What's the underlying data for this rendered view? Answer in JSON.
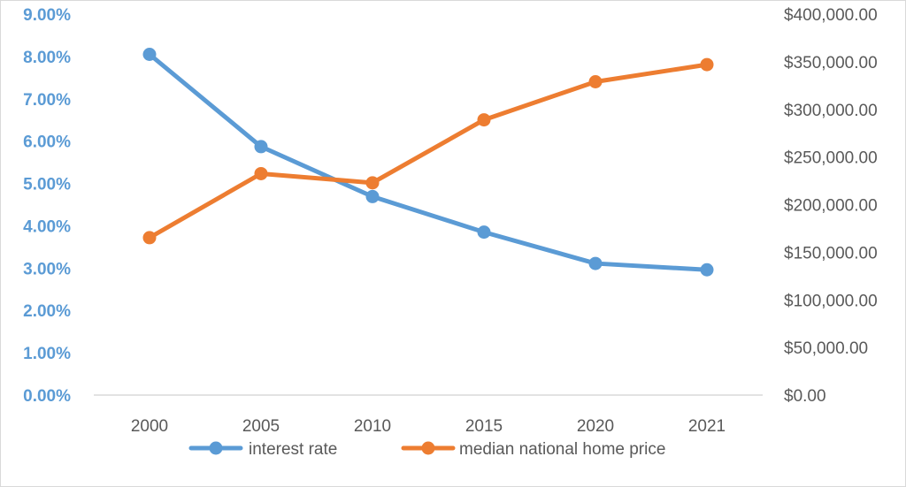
{
  "chart_data": {
    "type": "line",
    "categories": [
      "2000",
      "2005",
      "2010",
      "2015",
      "2020",
      "2021"
    ],
    "series": [
      {
        "name": "interest rate",
        "axis": "left",
        "color": "#5b9bd5",
        "values": [
          0.0805,
          0.0587,
          0.0469,
          0.0385,
          0.0311,
          0.0296
        ]
      },
      {
        "name": "median national home price",
        "axis": "right",
        "color": "#ed7d31",
        "values": [
          165300,
          232500,
          222900,
          289000,
          329000,
          347000
        ]
      }
    ],
    "y_left": {
      "min": 0,
      "max": 0.09,
      "ticks": [
        "0.00%",
        "1.00%",
        "2.00%",
        "3.00%",
        "4.00%",
        "5.00%",
        "6.00%",
        "7.00%",
        "8.00%",
        "9.00%"
      ],
      "tick_color": "#5b9bd5"
    },
    "y_right": {
      "min": 0,
      "max": 400000,
      "ticks": [
        "$0.00",
        "$50,000.00",
        "$100,000.00",
        "$150,000.00",
        "$200,000.00",
        "$250,000.00",
        "$300,000.00",
        "$350,000.00",
        "$400,000.00"
      ]
    },
    "grid": false,
    "legend_position": "bottom"
  }
}
